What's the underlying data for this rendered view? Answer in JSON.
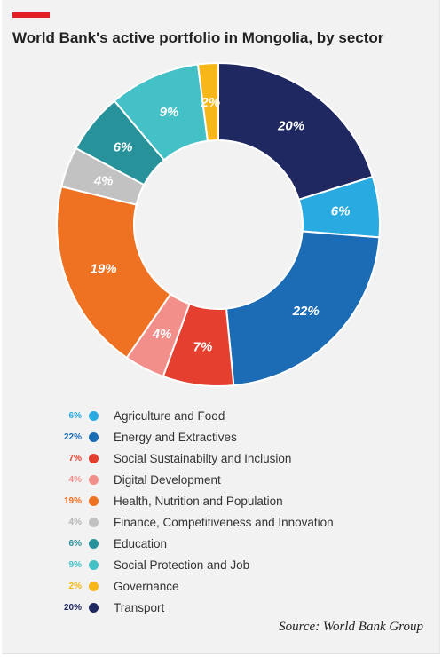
{
  "title": "World Bank's active portfolio in Mongolia, by sector",
  "source": "Source: World Bank Group",
  "chart_data": {
    "type": "pie",
    "variant": "donut",
    "start_angle": "12 o'clock",
    "direction": "clockwise",
    "legend_placement": "bottom",
    "slices": [
      {
        "label": "Transport",
        "value": 20,
        "display": "20%",
        "color": "#1f2860",
        "label_color": "#1f2860"
      },
      {
        "label": "Agriculture and Food",
        "value": 6,
        "display": "6%",
        "color": "#29abe2",
        "label_color": "#29abe2"
      },
      {
        "label": "Energy and Extractives",
        "value": 22,
        "display": "22%",
        "color": "#1c6bb5",
        "label_color": "#1c6bb5"
      },
      {
        "label": "Social Sustainabilty and Inclusion",
        "value": 7,
        "display": "7%",
        "color": "#e53f2f",
        "label_color": "#e53f2f"
      },
      {
        "label": "Digital Development",
        "value": 4,
        "display": "4%",
        "color": "#f38f8a",
        "label_color": "#f38f8a"
      },
      {
        "label": "Health, Nutrition and Population",
        "value": 19,
        "display": "19%",
        "color": "#ef7222",
        "label_color": "#ef7222"
      },
      {
        "label": "Finance, Competitiveness and Innovation",
        "value": 4,
        "display": "4%",
        "color": "#c2c2c2",
        "label_color": "#b5b5b5"
      },
      {
        "label": "Education",
        "value": 6,
        "display": "6%",
        "color": "#27929a",
        "label_color": "#27929a"
      },
      {
        "label": "Social Protection and Job",
        "value": 9,
        "display": "9%",
        "color": "#44c0c7",
        "label_color": "#44c0c7"
      },
      {
        "label": "Governance",
        "value": 2,
        "display": "2%",
        "color": "#f7b719",
        "label_color": "#f7b719"
      }
    ],
    "legend_order": [
      "Agriculture and Food",
      "Energy and Extractives",
      "Social Sustainabilty and Inclusion",
      "Digital Development",
      "Health, Nutrition and Population",
      "Finance, Competitiveness and Innovation",
      "Education",
      "Social Protection and Job",
      "Governance",
      "Transport"
    ]
  }
}
